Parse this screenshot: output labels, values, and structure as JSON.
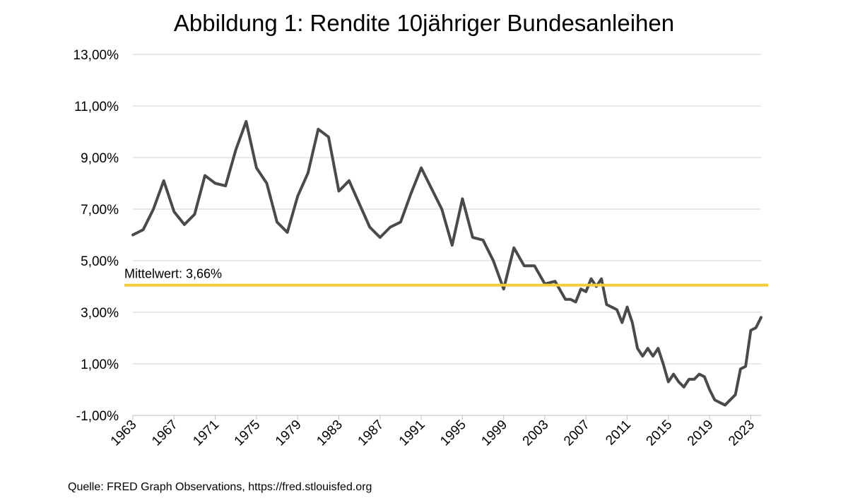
{
  "chart_data": {
    "type": "line",
    "title": "Abbildung 1: Rendite 10jähriger Bundesanleihen",
    "xlabel": "",
    "ylabel": "",
    "xlim": [
      1963,
      2024
    ],
    "ylim": [
      -1,
      13
    ],
    "y_ticks": [
      -1,
      1,
      3,
      5,
      7,
      9,
      11,
      13
    ],
    "y_tick_labels": [
      "-1,00%",
      "1,00%",
      "3,00%",
      "5,00%",
      "7,00%",
      "9,00%",
      "11,00%",
      "13,00%"
    ],
    "x_ticks": [
      1963,
      1967,
      1971,
      1975,
      1979,
      1983,
      1987,
      1991,
      1995,
      1999,
      2003,
      2007,
      2011,
      2015,
      2019,
      2023
    ],
    "grid": "horizontal",
    "colors": {
      "series": "#4a4a4e",
      "mean": "#f2cc3a",
      "grid": "#d0d0d0"
    },
    "series": [
      {
        "x": [
          1963,
          1964,
          1965,
          1966,
          1967,
          1968,
          1969,
          1970,
          1971,
          1972,
          1973,
          1974,
          1975,
          1976,
          1977,
          1978,
          1979,
          1980,
          1981,
          1982,
          1983,
          1984,
          1985,
          1986,
          1987,
          1988,
          1989,
          1990,
          1991,
          1992,
          1993,
          1994,
          1995,
          1996,
          1997,
          1998,
          1999,
          2000,
          2001,
          2002,
          2003,
          2004,
          2005,
          2005.5,
          2006,
          2006.5,
          2007,
          2007.5,
          2008,
          2008.5,
          2009,
          2009.5,
          2010,
          2010.5,
          2011,
          2011.5,
          2012,
          2012.5,
          2013,
          2013.5,
          2014,
          2014.5,
          2015,
          2015.5,
          2016,
          2016.5,
          2017,
          2017.5,
          2018,
          2018.5,
          2019,
          2019.5,
          2020,
          2020.5,
          2021,
          2021.5,
          2022,
          2022.5,
          2023,
          2023.5,
          2024
        ],
        "values": [
          6.0,
          6.2,
          7.0,
          8.1,
          6.9,
          6.4,
          6.8,
          8.3,
          8.0,
          7.9,
          9.3,
          10.4,
          8.6,
          8.0,
          6.5,
          6.1,
          7.5,
          8.4,
          10.1,
          9.8,
          7.7,
          8.1,
          7.2,
          6.3,
          5.9,
          6.3,
          6.5,
          7.6,
          8.6,
          7.8,
          7.0,
          5.6,
          7.4,
          5.9,
          5.8,
          5.0,
          3.9,
          5.5,
          4.8,
          4.8,
          4.1,
          4.2,
          3.5,
          3.5,
          3.4,
          3.9,
          3.8,
          4.3,
          4.0,
          4.3,
          3.3,
          3.2,
          3.1,
          2.6,
          3.2,
          2.6,
          1.6,
          1.3,
          1.6,
          1.3,
          1.6,
          1.0,
          0.3,
          0.6,
          0.3,
          0.1,
          0.4,
          0.4,
          0.6,
          0.5,
          0.0,
          -0.4,
          -0.5,
          -0.6,
          -0.4,
          -0.2,
          0.8,
          0.9,
          2.3,
          2.4,
          2.8
        ]
      },
      {
        "name": "Mittelwert: 3,66%",
        "type": "hline",
        "values": [
          3.66
        ]
      }
    ]
  },
  "source": "Quelle:  FRED Graph Observations, https://fred.stlouisfed.org"
}
